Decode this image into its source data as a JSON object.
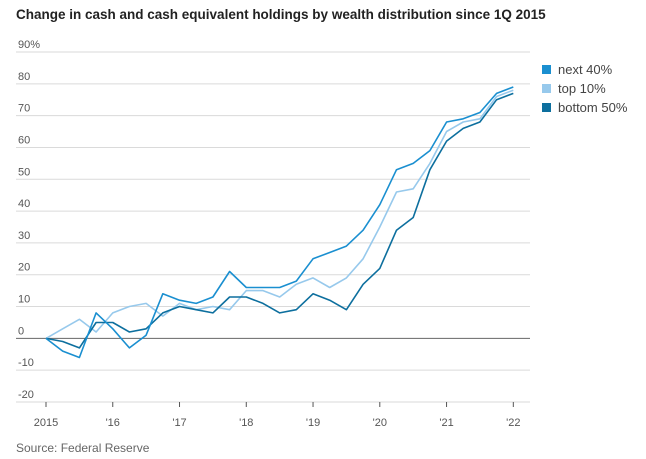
{
  "chart_data": {
    "type": "line",
    "title": "Change in cash and cash equivalent holdings by wealth distribution since 1Q 2015",
    "source": "Source: Federal Reserve",
    "xlabel": "",
    "ylabel": "",
    "ylim": [
      -20,
      90
    ],
    "xlim": [
      2015,
      2022.25
    ],
    "y_ticks": [
      90,
      80,
      70,
      60,
      50,
      40,
      30,
      20,
      10,
      0,
      -10,
      -20
    ],
    "y_tick_labels": [
      "90%",
      "80",
      "70",
      "60",
      "50",
      "40",
      "30",
      "20",
      "10",
      "0",
      "-10",
      "-20"
    ],
    "x_ticks": [
      2015,
      2016,
      2017,
      2018,
      2019,
      2020,
      2021,
      2022
    ],
    "x_tick_labels": [
      "2015",
      "'16",
      "'17",
      "'18",
      "'19",
      "'20",
      "'21",
      "'22"
    ],
    "grid": "horizontal",
    "legend_position": "top-right",
    "x": [
      2015.0,
      2015.25,
      2015.5,
      2015.75,
      2016.0,
      2016.25,
      2016.5,
      2016.75,
      2017.0,
      2017.25,
      2017.5,
      2017.75,
      2018.0,
      2018.25,
      2018.5,
      2018.75,
      2019.0,
      2019.25,
      2019.5,
      2019.75,
      2020.0,
      2020.25,
      2020.5,
      2020.75,
      2021.0,
      2021.25,
      2021.5,
      2021.75,
      2022.0
    ],
    "series": [
      {
        "name": "next 40%",
        "color": "#1a8fd0",
        "values": [
          0,
          -4,
          -6,
          8,
          3,
          -3,
          1,
          14,
          12,
          11,
          13,
          21,
          16,
          16,
          16,
          18,
          25,
          27,
          29,
          34,
          42,
          53,
          55,
          59,
          68,
          69,
          71,
          77,
          79
        ]
      },
      {
        "name": "top 10%",
        "color": "#97c9ec",
        "values": [
          0,
          3,
          6,
          2,
          8,
          10,
          11,
          7,
          11,
          9,
          10,
          9,
          15,
          15,
          13,
          17,
          19,
          16,
          19,
          25,
          35,
          46,
          47,
          55,
          65,
          68,
          69,
          76,
          78
        ]
      },
      {
        "name": "bottom 50%",
        "color": "#0d6f9e",
        "values": [
          0,
          -1,
          -3,
          5,
          5,
          2,
          3,
          8,
          10,
          9,
          8,
          13,
          13,
          11,
          8,
          9,
          14,
          12,
          9,
          17,
          22,
          34,
          38,
          53,
          62,
          66,
          68,
          75,
          77
        ]
      }
    ]
  }
}
